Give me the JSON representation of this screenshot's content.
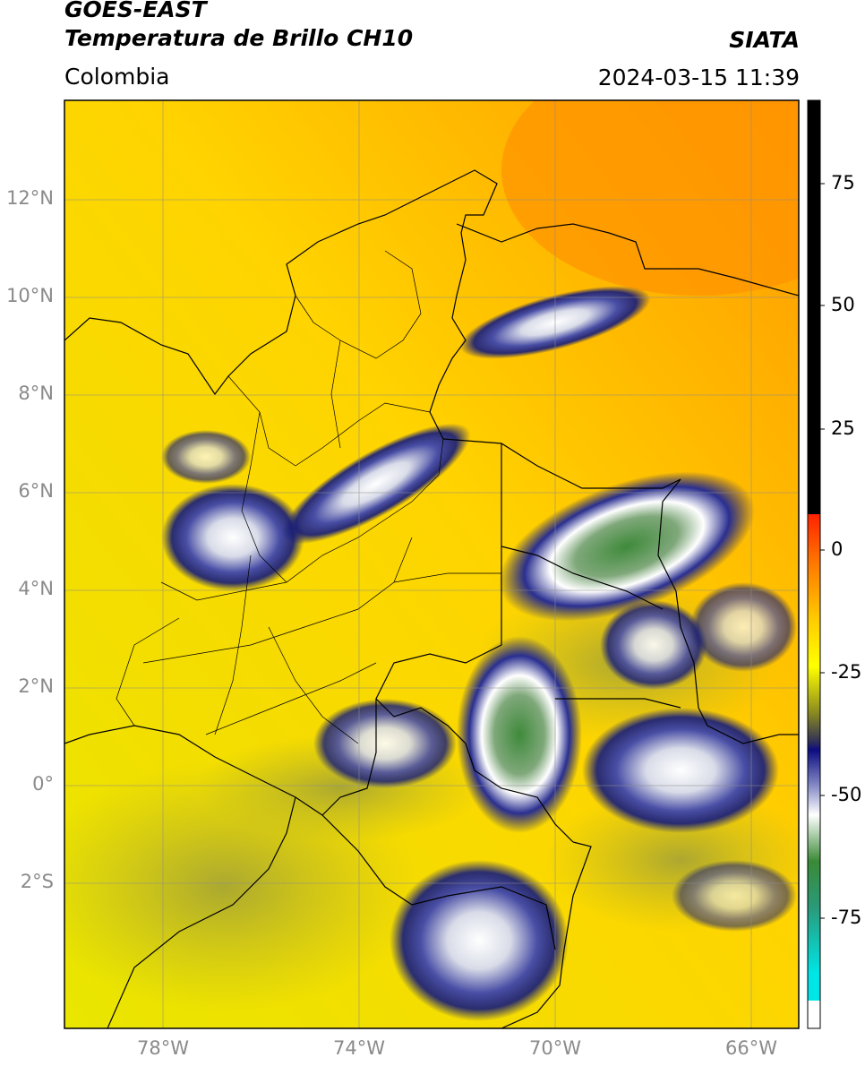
{
  "header": {
    "satellite": "GOES-EAST",
    "product": "Temperatura de Brillo CH10",
    "organization": "SIATA",
    "region": "Colombia",
    "datetime": "2024-03-15 11:39"
  },
  "map": {
    "lon_range": [
      -80,
      -65
    ],
    "lat_range": [
      -5,
      14
    ],
    "lat_ticks": [
      "12°N",
      "10°N",
      "8°N",
      "6°N",
      "4°N",
      "2°N",
      "0°",
      "2°S"
    ],
    "lon_ticks": [
      "78°W",
      "74°W",
      "70°W",
      "66°W"
    ]
  },
  "colorbar": {
    "ticks": [
      "75",
      "50",
      "25",
      "0",
      "-25",
      "-50",
      "-75"
    ],
    "colors": {
      "black": "#000000",
      "red": "#ff2a00",
      "orange": "#ff9900",
      "yellow": "#ffff00",
      "olive": "#6b6b2a",
      "navy": "#10107a",
      "white": "#ffffff",
      "green": "#3e8f3a",
      "cyan": "#00e0e0"
    }
  }
}
